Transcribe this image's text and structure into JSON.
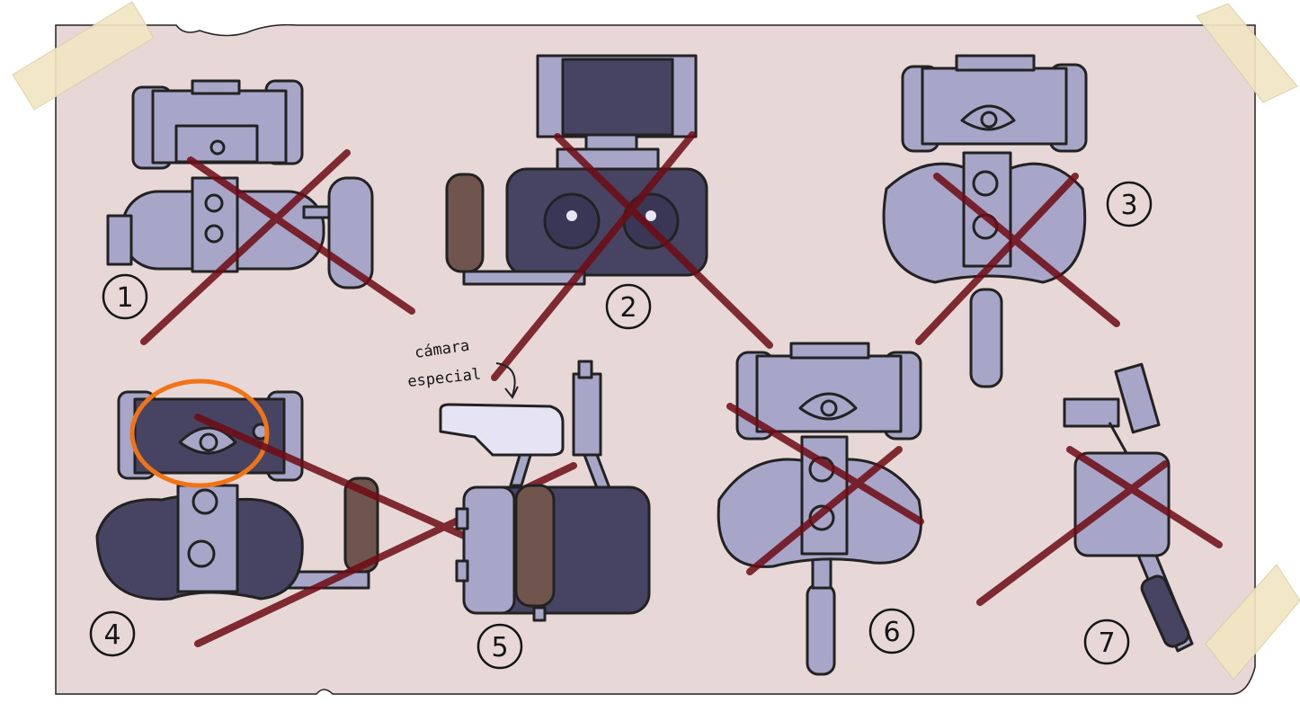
{
  "sketches": [
    {
      "number": "1",
      "crossed": true,
      "circled": false
    },
    {
      "number": "2",
      "crossed": true,
      "circled": false
    },
    {
      "number": "3",
      "crossed": true,
      "circled": false
    },
    {
      "number": "4",
      "crossed": true,
      "circled": true
    },
    {
      "number": "5",
      "crossed": false,
      "circled": false
    },
    {
      "number": "6",
      "crossed": true,
      "circled": false
    },
    {
      "number": "7",
      "crossed": true,
      "circled": false
    }
  ],
  "annotation": {
    "line1": "cámara",
    "line2": "especial"
  },
  "colors": {
    "paper": "#e7d7d7",
    "light_body": "#a8a6c8",
    "dark_body": "#474463",
    "grip": "#70554f",
    "cross": "#6e0c14",
    "highlight_circle": "#f07416",
    "tape": "#f1e6c3"
  }
}
